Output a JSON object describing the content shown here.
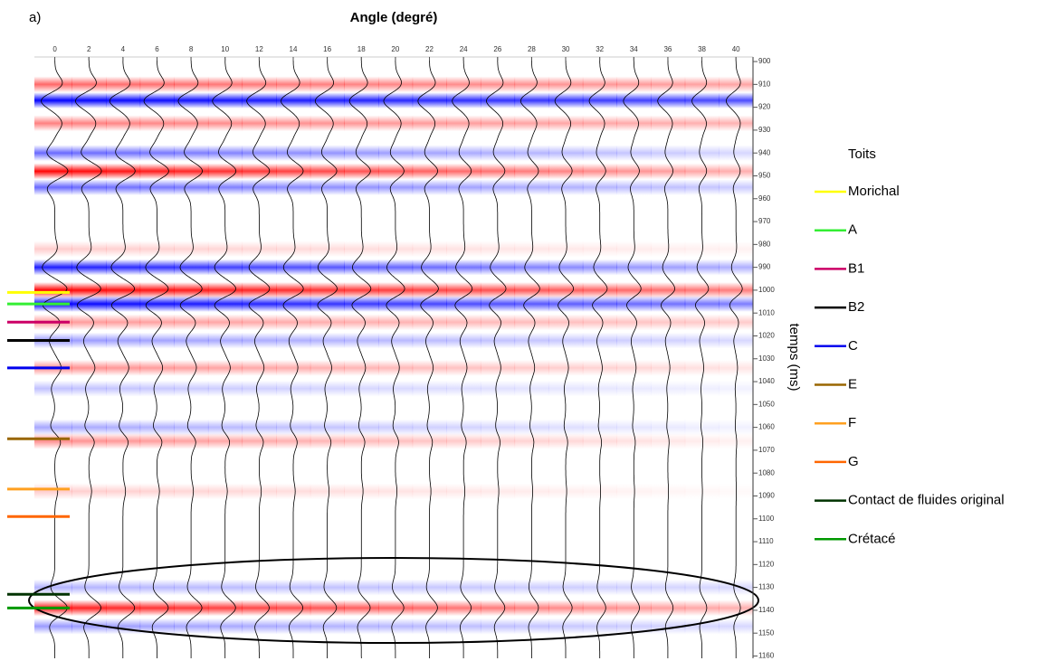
{
  "chart_data": {
    "type": "seismic",
    "panel_label": "a)",
    "title": "Angle (degré)",
    "ylabel": "temps (ms)",
    "xlim": [
      -1.2,
      41
    ],
    "ylim": [
      898,
      1161
    ],
    "y_inverted": true,
    "positive_color": "#ff0000",
    "negative_color": "#0000ff",
    "xticks": [
      0,
      2,
      4,
      6,
      8,
      10,
      12,
      14,
      16,
      18,
      20,
      22,
      24,
      26,
      28,
      30,
      32,
      34,
      36,
      38,
      40
    ],
    "yticks": [
      900,
      910,
      920,
      930,
      940,
      950,
      960,
      970,
      980,
      990,
      1000,
      1010,
      1020,
      1030,
      1040,
      1050,
      1060,
      1070,
      1080,
      1090,
      1100,
      1110,
      1120,
      1130,
      1140,
      1150,
      1160
    ],
    "events": [
      {
        "time": 910,
        "amp_start": 0.6,
        "amp_end": 0.35
      },
      {
        "time": 917,
        "amp_start": -1,
        "amp_end": -0.7
      },
      {
        "time": 927,
        "amp_start": 0.5,
        "amp_end": 0.3
      },
      {
        "time": 940,
        "amp_start": -0.6,
        "amp_end": -0.15
      },
      {
        "time": 948,
        "amp_start": 1,
        "amp_end": 0.3
      },
      {
        "time": 955,
        "amp_start": -0.6,
        "amp_end": -0.2
      },
      {
        "time": 982,
        "amp_start": 0.2,
        "amp_end": 0.05
      },
      {
        "time": 990,
        "amp_start": -0.9,
        "amp_end": -0.3
      },
      {
        "time": 1000,
        "amp_start": 1,
        "amp_end": 0.5
      },
      {
        "time": 1006,
        "amp_start": -1,
        "amp_end": -0.5
      },
      {
        "time": 1014,
        "amp_start": 0.4,
        "amp_end": 0.2
      },
      {
        "time": 1022,
        "amp_start": -0.4,
        "amp_end": -0.15
      },
      {
        "time": 1034,
        "amp_start": 0.45,
        "amp_end": 0.1
      },
      {
        "time": 1043,
        "amp_start": -0.25,
        "amp_end": -0.05
      },
      {
        "time": 1060,
        "amp_start": -0.35,
        "amp_end": -0.05
      },
      {
        "time": 1066,
        "amp_start": 0.45,
        "amp_end": 0.05
      },
      {
        "time": 1088,
        "amp_start": 0.2,
        "amp_end": 0.02
      },
      {
        "time": 1130,
        "amp_start": -0.3,
        "amp_end": -0.15
      },
      {
        "time": 1139,
        "amp_start": 0.9,
        "amp_end": 0.3
      },
      {
        "time": 1147,
        "amp_start": -0.4,
        "amp_end": -0.15
      }
    ],
    "legend_title": "Toits",
    "series": [
      {
        "name": "Morichal",
        "color": "#ffff00",
        "time": 1001
      },
      {
        "name": "A",
        "color": "#33ee33",
        "time": 1006
      },
      {
        "name": "B1",
        "color": "#cc0066",
        "time": 1014
      },
      {
        "name": "B2",
        "color": "#000000",
        "time": 1022
      },
      {
        "name": "C",
        "color": "#0000ee",
        "time": 1034
      },
      {
        "name": "E",
        "color": "#996600",
        "time": 1065
      },
      {
        "name": "F",
        "color": "#ffa020",
        "time": 1087
      },
      {
        "name": "G",
        "color": "#ff6600",
        "time": 1099
      },
      {
        "name": "Contact de fluides original",
        "color": "#003300",
        "time": 1133
      },
      {
        "name": "Crétacé",
        "color": "#009900",
        "time": 1139
      }
    ]
  }
}
